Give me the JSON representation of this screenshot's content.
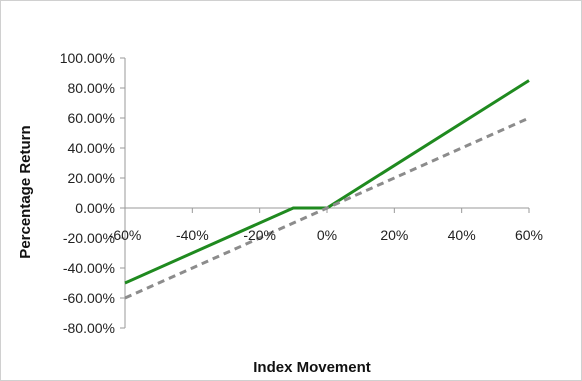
{
  "chart_data": {
    "type": "line",
    "title": "",
    "xlabel": "Index Movement",
    "ylabel": "Percentage Return",
    "x_ticks": [
      "-60%",
      "-40%",
      "-20%",
      "0%",
      "20%",
      "40%",
      "60%"
    ],
    "y_ticks": [
      "100.00%",
      "80.00%",
      "60.00%",
      "40.00%",
      "20.00%",
      "0.00%",
      "-20.00%",
      "-40.00%",
      "-60.00%",
      "-80.00%"
    ],
    "xlim": [
      -60,
      60
    ],
    "ylim": [
      -80,
      100
    ],
    "grid": false,
    "legend": "none",
    "series": [
      {
        "color": "#1f8a1f",
        "style": "solid",
        "x": [
          -60,
          -10,
          0,
          60
        ],
        "y": [
          -50,
          0,
          0,
          85
        ]
      },
      {
        "color": "#8c8c8c",
        "style": "dashed",
        "x": [
          -60,
          60
        ],
        "y": [
          -60,
          60
        ]
      }
    ]
  }
}
